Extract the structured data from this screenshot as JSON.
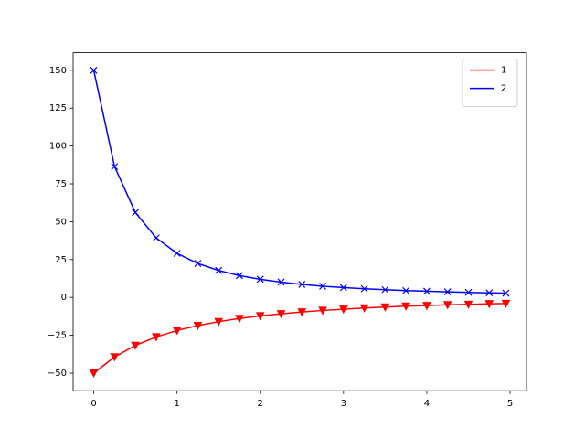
{
  "chart_data": {
    "type": "line",
    "x": [
      0,
      0.25,
      0.5,
      0.75,
      1,
      1.25,
      1.5,
      1.75,
      2,
      2.25,
      2.5,
      2.75,
      3,
      3.25,
      3.5,
      3.75,
      4,
      4.25,
      4.5,
      4.75,
      4.95
    ],
    "series": [
      {
        "name": "1",
        "color": "#ff0000",
        "marker": "triangle-down",
        "values": [
          -50,
          -39.3,
          -31.7,
          -26.1,
          -21.8,
          -18.6,
          -16.0,
          -13.9,
          -12.2,
          -10.8,
          -9.6,
          -8.6,
          -7.8,
          -7.0,
          -6.4,
          -5.8,
          -5.4,
          -4.9,
          -4.6,
          -4.2,
          -4.0
        ]
      },
      {
        "name": "2",
        "color": "#0000ff",
        "marker": "x",
        "values": [
          150,
          86.4,
          56.1,
          39.3,
          29.1,
          22.4,
          17.8,
          14.4,
          12.0,
          10.1,
          8.6,
          7.4,
          6.5,
          5.7,
          5.1,
          4.5,
          4.1,
          3.7,
          3.3,
          3.0,
          2.8
        ]
      }
    ],
    "xlim": [
      -0.2475,
      5.1975
    ],
    "xticks": [
      0,
      1,
      2,
      3,
      4,
      5
    ],
    "ylim": [
      -61.6,
      161.6
    ],
    "yticks": [
      {
        "value": -50,
        "label": "−50"
      },
      {
        "value": -25,
        "label": "−25"
      },
      0,
      25,
      50,
      75,
      100,
      125,
      150
    ],
    "grid": false,
    "legend": "upper right"
  }
}
